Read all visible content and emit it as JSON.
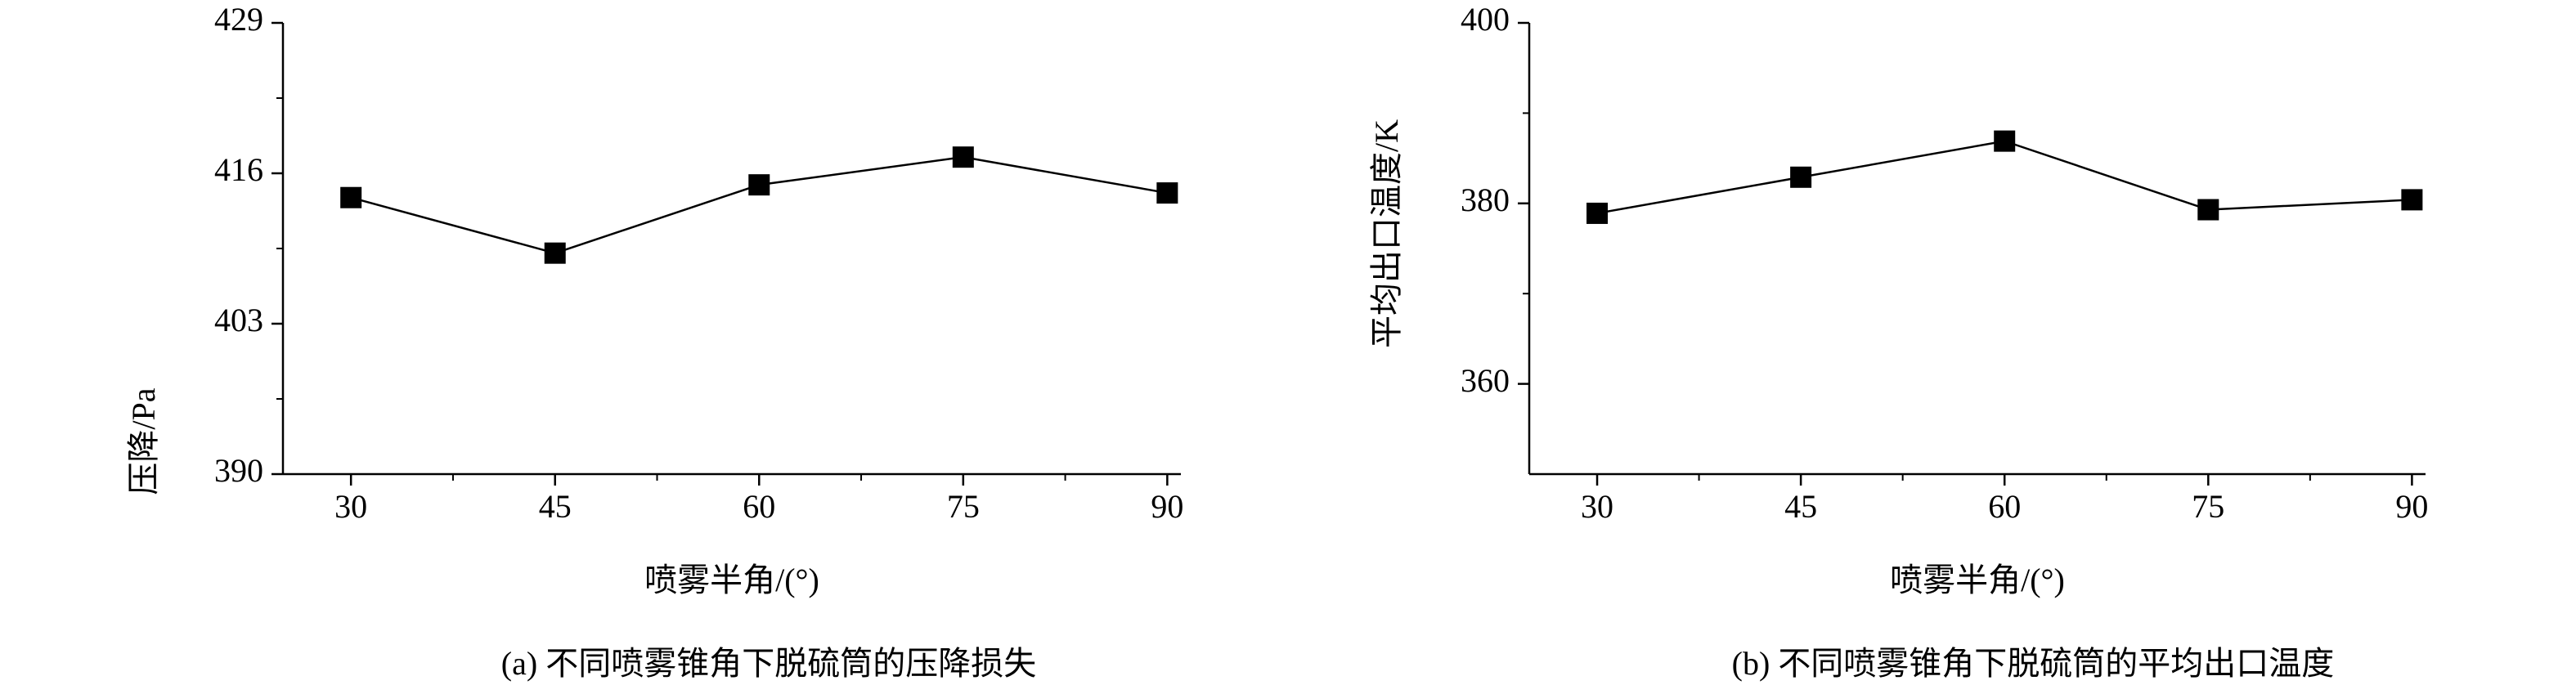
{
  "chart_data": [
    {
      "type": "line",
      "x_label": "喷雾半角/(°)",
      "y_label": "压降/Pa",
      "caption": "(a) 不同喷雾锥角下脱硫筒的压降损失",
      "x": [
        30,
        45,
        60,
        75,
        90
      ],
      "xlim": [
        25,
        91
      ],
      "xticks": [
        30,
        45,
        60,
        75,
        90
      ],
      "ylim": [
        390,
        429
      ],
      "yticks": [
        390,
        403,
        416,
        429
      ],
      "values": [
        413.9,
        409.1,
        415.0,
        417.4,
        414.3
      ],
      "color": "#000000",
      "marker": "square"
    },
    {
      "type": "line",
      "x_label": "喷雾半角/(°)",
      "y_label": "平均出口温度/K",
      "caption": "(b) 不同喷雾锥角下脱硫筒的平均出口温度",
      "x": [
        30,
        45,
        60,
        75,
        90
      ],
      "xlim": [
        25,
        91
      ],
      "xticks": [
        30,
        45,
        60,
        75,
        90
      ],
      "ylim": [
        350,
        400
      ],
      "yticks": [
        360,
        380,
        400
      ],
      "values": [
        378.9,
        382.9,
        386.9,
        379.3,
        380.4
      ],
      "color": "#000000",
      "marker": "square"
    }
  ]
}
